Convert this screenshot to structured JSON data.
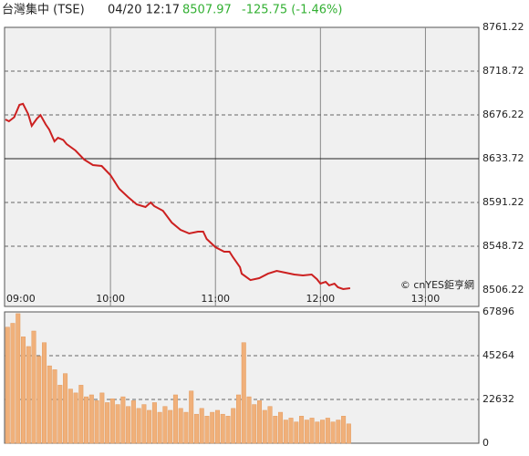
{
  "header": {
    "name": "台灣集中 (TSE)",
    "time": "04/20 12:17",
    "price": 8507.97,
    "change": "-125.75 (-1.46%)"
  },
  "watermark": "© cnYES鉅亨網",
  "chart_data": [
    {
      "type": "line",
      "color": "#cc2020",
      "x": [
        "09:00",
        "09:02",
        "09:05",
        "09:08",
        "09:10",
        "09:13",
        "09:15",
        "09:18",
        "09:20",
        "09:23",
        "09:25",
        "09:28",
        "09:30",
        "09:33",
        "09:35",
        "09:40",
        "09:45",
        "09:50",
        "09:55",
        "10:00",
        "10:05",
        "10:10",
        "10:15",
        "10:20",
        "10:23",
        "10:25",
        "10:30",
        "10:35",
        "10:40",
        "10:45",
        "10:50",
        "10:53",
        "10:55",
        "11:00",
        "11:05",
        "11:08",
        "11:10",
        "11:14",
        "11:15",
        "11:20",
        "11:25",
        "11:30",
        "11:35",
        "11:40",
        "11:45",
        "11:50",
        "11:55",
        "11:58",
        "12:00",
        "12:03",
        "12:05",
        "12:08",
        "12:10",
        "12:13",
        "12:17"
      ],
      "values": [
        8671.8,
        8670,
        8674,
        8686,
        8687,
        8677,
        8665.6,
        8672.7,
        8676,
        8667,
        8662,
        8650.5,
        8654,
        8652,
        8647.9,
        8641.7,
        8632.8,
        8627.5,
        8626.6,
        8617.8,
        8604.5,
        8596.5,
        8589.4,
        8586.8,
        8591.2,
        8587.7,
        8583.2,
        8571.7,
        8564.7,
        8561.1,
        8562.9,
        8562.9,
        8555.8,
        8547.8,
        8543.4,
        8543.4,
        8538.1,
        8528.4,
        8522.1,
        8515.9,
        8517.7,
        8522.1,
        8524.8,
        8523,
        8521.3,
        8520.4,
        8521.3,
        8516.8,
        8512.4,
        8514.2,
        8510.7,
        8512.4,
        8508.9,
        8507.1,
        8507.97
      ],
      "baseline": 8633.72,
      "xlim": [
        "09:00",
        "13:30"
      ],
      "xticks": [
        "09:00",
        "10:00",
        "11:00",
        "12:00",
        "13:00"
      ],
      "ylim": [
        8506.22,
        8761.22
      ],
      "yticks": [
        8761.22,
        8718.72,
        8676.22,
        8633.72,
        8591.22,
        8548.72,
        8506.22
      ],
      "grid": true
    },
    {
      "type": "bar",
      "color": "#f0b07a",
      "x": [
        "09:00",
        "09:03",
        "09:06",
        "09:09",
        "09:12",
        "09:15",
        "09:18",
        "09:21",
        "09:24",
        "09:27",
        "09:30",
        "09:33",
        "09:36",
        "09:39",
        "09:42",
        "09:45",
        "09:48",
        "09:51",
        "09:54",
        "09:57",
        "10:00",
        "10:03",
        "10:06",
        "10:09",
        "10:12",
        "10:15",
        "10:18",
        "10:21",
        "10:24",
        "10:27",
        "10:30",
        "10:33",
        "10:36",
        "10:39",
        "10:42",
        "10:45",
        "10:48",
        "10:51",
        "10:54",
        "10:57",
        "11:00",
        "11:03",
        "11:06",
        "11:09",
        "11:12",
        "11:15",
        "11:18",
        "11:21",
        "11:24",
        "11:27",
        "11:30",
        "11:33",
        "11:36",
        "11:39",
        "11:42",
        "11:45",
        "11:48",
        "11:51",
        "11:54",
        "11:57",
        "12:00",
        "12:03",
        "12:06",
        "12:09",
        "12:12",
        "12:15"
      ],
      "values": [
        60000,
        62000,
        67000,
        55000,
        50000,
        58000,
        45000,
        52000,
        40000,
        38000,
        30000,
        36000,
        28000,
        26000,
        30000,
        24000,
        25000,
        22000,
        26000,
        21000,
        23000,
        20000,
        24000,
        19000,
        22000,
        18000,
        20000,
        17000,
        21000,
        16000,
        19000,
        17000,
        25000,
        18000,
        16000,
        27000,
        15000,
        18000,
        14000,
        16000,
        17000,
        15000,
        14000,
        18000,
        25000,
        52000,
        24000,
        20000,
        22000,
        17000,
        19000,
        14000,
        16000,
        12000,
        13000,
        11000,
        14000,
        12000,
        13000,
        11000,
        12000,
        13000,
        11000,
        12000,
        14000,
        10000
      ],
      "xlim": [
        "09:00",
        "13:30"
      ],
      "ylim": [
        0,
        67896
      ],
      "yticks": [
        67896,
        45264,
        22632,
        0
      ],
      "grid": true
    }
  ]
}
